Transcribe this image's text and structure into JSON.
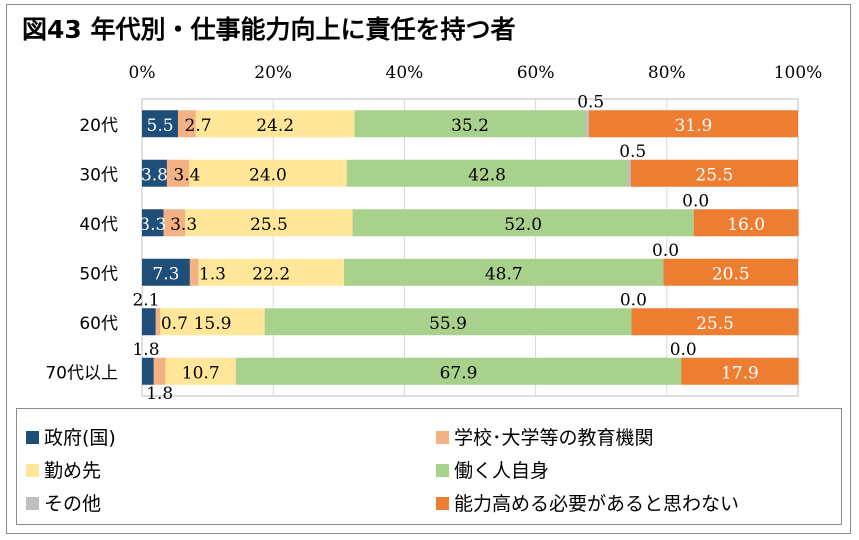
{
  "title": "図43 年代別・仕事能力向上に責任を持つ者",
  "chart_data": {
    "type": "bar",
    "orientation": "horizontal",
    "stacked": true,
    "percent_stacked": true,
    "xlim": [
      0,
      100
    ],
    "x_ticks": [
      "0%",
      "20%",
      "40%",
      "60%",
      "80%",
      "100%"
    ],
    "categories": [
      "20代",
      "30代",
      "40代",
      "50代",
      "60代",
      "70代以上"
    ],
    "series": [
      {
        "name": "政府(国)",
        "color": "#1f4e79",
        "values": [
          5.5,
          3.8,
          3.3,
          7.3,
          2.1,
          1.8
        ]
      },
      {
        "name": "学校･大学等の教育機関",
        "color": "#f4b183",
        "values": [
          2.7,
          3.4,
          3.3,
          1.3,
          0.7,
          1.8
        ]
      },
      {
        "name": "勤め先",
        "color": "#ffe699",
        "values": [
          24.2,
          24.0,
          25.5,
          22.2,
          15.9,
          10.7
        ]
      },
      {
        "name": "働く人自身",
        "color": "#a9d18e",
        "values": [
          35.2,
          42.8,
          52.0,
          48.7,
          55.9,
          67.9
        ]
      },
      {
        "name": "その他",
        "color": "#bfbfbf",
        "values": [
          0.5,
          0.5,
          0.0,
          0.0,
          0.0,
          0.0
        ]
      },
      {
        "name": "能力高める必要があると思わない",
        "color": "#ed7d31",
        "values": [
          31.9,
          25.5,
          16.0,
          20.5,
          25.5,
          17.9
        ]
      }
    ],
    "value_labels": [
      [
        "5.5",
        "2.7",
        "24.2",
        "35.2",
        "0.5",
        "31.9"
      ],
      [
        "3.8",
        "3.4",
        "24.0",
        "42.8",
        "0.5",
        "25.5"
      ],
      [
        "3.3",
        "3.3",
        "25.5",
        "52.0",
        "0.0",
        "16.0"
      ],
      [
        "7.3",
        "1.3",
        "22.2",
        "48.7",
        "0.0",
        "20.5"
      ],
      [
        "2.1",
        "0.7",
        "15.9",
        "55.9",
        "0.0",
        "25.5"
      ],
      [
        "1.8",
        "1.8",
        "10.7",
        "67.9",
        "0.0",
        "17.9"
      ]
    ],
    "legend_position": "bottom",
    "grid": true
  }
}
